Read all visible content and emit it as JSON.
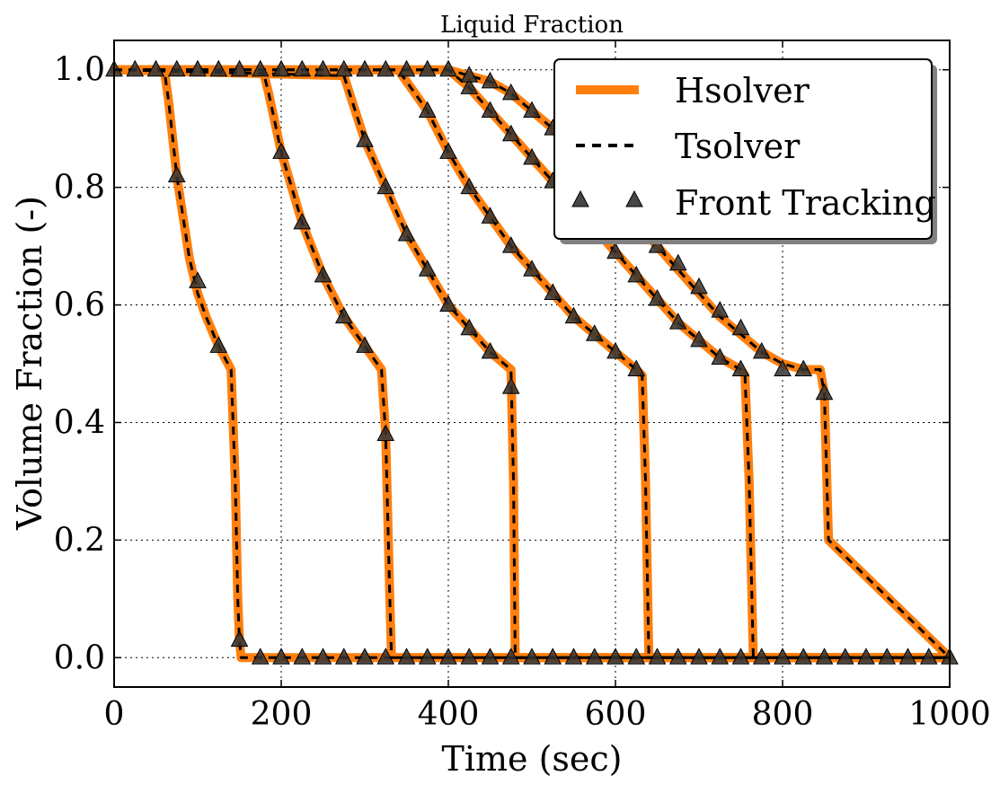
{
  "chart_data": {
    "type": "line",
    "title": "Liquid Fraction",
    "xlabel": "Time (sec)",
    "ylabel": "Volume Fraction (-)",
    "xlim": [
      0,
      1000
    ],
    "ylim": [
      -0.05,
      1.05
    ],
    "xticks": [
      0,
      200,
      400,
      600,
      800,
      1000
    ],
    "yticks": [
      0.0,
      0.2,
      0.4,
      0.6,
      0.8,
      1.0
    ],
    "xtick_labels": [
      "0",
      "200",
      "400",
      "600",
      "800",
      "1000"
    ],
    "ytick_labels": [
      "0.0",
      "0.2",
      "0.4",
      "0.6",
      "0.8",
      "1.0"
    ],
    "grid": true,
    "legend_position": "top-right",
    "colors": {
      "hsolver": "#ff7f0e",
      "tsolver": "#000000",
      "front_tracking": "#333333"
    },
    "legend": [
      {
        "label": "Hsolver",
        "style": "solid-orange-line"
      },
      {
        "label": "Tsolver",
        "style": "dashed-black-line"
      },
      {
        "label": "Front Tracking",
        "style": "triangle-markers"
      }
    ],
    "series": [
      {
        "curve": 1,
        "x": [
          0,
          60,
          65,
          75,
          90,
          100,
          110,
          125,
          140,
          145,
          148,
          150,
          152,
          1000
        ],
        "y": [
          1.0,
          1.0,
          0.95,
          0.82,
          0.68,
          0.62,
          0.58,
          0.53,
          0.49,
          0.3,
          0.1,
          0.03,
          0.0,
          0.0
        ]
      },
      {
        "curve": 2,
        "x": [
          0,
          178,
          185,
          200,
          225,
          250,
          275,
          300,
          320,
          325,
          330,
          332,
          1000
        ],
        "y": [
          1.0,
          1.0,
          0.96,
          0.86,
          0.74,
          0.65,
          0.58,
          0.53,
          0.49,
          0.38,
          0.1,
          0.0,
          0.0
        ]
      },
      {
        "curve": 3,
        "x": [
          0,
          275,
          300,
          325,
          350,
          375,
          400,
          425,
          450,
          475,
          478,
          480,
          1000
        ],
        "y": [
          1.0,
          0.99,
          0.88,
          0.8,
          0.72,
          0.66,
          0.6,
          0.56,
          0.52,
          0.49,
          0.3,
          0.0,
          0.0
        ]
      },
      {
        "curve": 4,
        "x": [
          0,
          340,
          350,
          375,
          400,
          425,
          450,
          475,
          500,
          525,
          550,
          575,
          600,
          625,
          632,
          636,
          640,
          1000
        ],
        "y": [
          1.0,
          1.0,
          0.98,
          0.93,
          0.86,
          0.8,
          0.75,
          0.7,
          0.66,
          0.62,
          0.58,
          0.55,
          0.52,
          0.49,
          0.48,
          0.3,
          0.0,
          0.0
        ]
      },
      {
        "curve": 5,
        "x": [
          0,
          400,
          425,
          450,
          475,
          500,
          525,
          550,
          575,
          600,
          625,
          650,
          675,
          700,
          725,
          750,
          755,
          760,
          765,
          1000
        ],
        "y": [
          1.0,
          1.0,
          0.97,
          0.93,
          0.89,
          0.85,
          0.81,
          0.77,
          0.73,
          0.69,
          0.65,
          0.61,
          0.57,
          0.54,
          0.51,
          0.49,
          0.48,
          0.3,
          0.0,
          0.0
        ]
      },
      {
        "curve": 6,
        "x": [
          0,
          400,
          425,
          450,
          475,
          500,
          525,
          550,
          575,
          600,
          625,
          650,
          675,
          700,
          725,
          750,
          775,
          800,
          825,
          845,
          850,
          855,
          1000
        ],
        "y": [
          1.0,
          1.0,
          0.99,
          0.98,
          0.96,
          0.93,
          0.9,
          0.86,
          0.82,
          0.78,
          0.74,
          0.7,
          0.66,
          0.62,
          0.58,
          0.55,
          0.52,
          0.5,
          0.49,
          0.49,
          0.45,
          0.2,
          0.0
        ]
      }
    ],
    "front_tracking_markers": [
      [
        0,
        1.0
      ],
      [
        25,
        1.0
      ],
      [
        50,
        1.0
      ],
      [
        75,
        1.0
      ],
      [
        100,
        1.0
      ],
      [
        125,
        1.0
      ],
      [
        150,
        1.0
      ],
      [
        175,
        1.0
      ],
      [
        200,
        1.0
      ],
      [
        225,
        1.0
      ],
      [
        250,
        1.0
      ],
      [
        275,
        1.0
      ],
      [
        300,
        1.0
      ],
      [
        325,
        1.0
      ],
      [
        350,
        1.0
      ],
      [
        375,
        1.0
      ],
      [
        400,
        1.0
      ],
      [
        75,
        0.82
      ],
      [
        100,
        0.64
      ],
      [
        125,
        0.53
      ],
      [
        150,
        0.03
      ],
      [
        200,
        0.86
      ],
      [
        225,
        0.74
      ],
      [
        250,
        0.65
      ],
      [
        275,
        0.58
      ],
      [
        300,
        0.53
      ],
      [
        325,
        0.38
      ],
      [
        300,
        0.88
      ],
      [
        325,
        0.8
      ],
      [
        350,
        0.72
      ],
      [
        375,
        0.66
      ],
      [
        400,
        0.6
      ],
      [
        425,
        0.56
      ],
      [
        450,
        0.52
      ],
      [
        475,
        0.46
      ],
      [
        375,
        0.93
      ],
      [
        400,
        0.86
      ],
      [
        425,
        0.8
      ],
      [
        450,
        0.75
      ],
      [
        475,
        0.7
      ],
      [
        500,
        0.66
      ],
      [
        525,
        0.62
      ],
      [
        550,
        0.58
      ],
      [
        575,
        0.55
      ],
      [
        600,
        0.52
      ],
      [
        625,
        0.49
      ],
      [
        425,
        0.97
      ],
      [
        450,
        0.93
      ],
      [
        475,
        0.89
      ],
      [
        500,
        0.85
      ],
      [
        525,
        0.81
      ],
      [
        550,
        0.77
      ],
      [
        575,
        0.73
      ],
      [
        600,
        0.69
      ],
      [
        625,
        0.65
      ],
      [
        650,
        0.61
      ],
      [
        675,
        0.57
      ],
      [
        700,
        0.54
      ],
      [
        725,
        0.51
      ],
      [
        750,
        0.49
      ],
      [
        425,
        0.99
      ],
      [
        450,
        0.98
      ],
      [
        475,
        0.96
      ],
      [
        500,
        0.93
      ],
      [
        525,
        0.9
      ],
      [
        550,
        0.86
      ],
      [
        575,
        0.82
      ],
      [
        600,
        0.78
      ],
      [
        625,
        0.74
      ],
      [
        650,
        0.7
      ],
      [
        675,
        0.67
      ],
      [
        700,
        0.63
      ],
      [
        725,
        0.59
      ],
      [
        750,
        0.56
      ],
      [
        775,
        0.52
      ],
      [
        800,
        0.49
      ],
      [
        825,
        0.49
      ],
      [
        850,
        0.45
      ],
      [
        175,
        0.0
      ],
      [
        200,
        0.0
      ],
      [
        225,
        0.0
      ],
      [
        250,
        0.0
      ],
      [
        275,
        0.0
      ],
      [
        300,
        0.0
      ],
      [
        325,
        0.0
      ],
      [
        350,
        0.0
      ],
      [
        375,
        0.0
      ],
      [
        400,
        0.0
      ],
      [
        425,
        0.0
      ],
      [
        450,
        0.0
      ],
      [
        475,
        0.0
      ],
      [
        500,
        0.0
      ],
      [
        525,
        0.0
      ],
      [
        550,
        0.0
      ],
      [
        575,
        0.0
      ],
      [
        600,
        0.0
      ],
      [
        625,
        0.0
      ],
      [
        650,
        0.0
      ],
      [
        675,
        0.0
      ],
      [
        700,
        0.0
      ],
      [
        725,
        0.0
      ],
      [
        750,
        0.0
      ],
      [
        775,
        0.0
      ],
      [
        800,
        0.0
      ],
      [
        825,
        0.0
      ],
      [
        850,
        0.0
      ],
      [
        875,
        0.0
      ],
      [
        900,
        0.0
      ],
      [
        925,
        0.0
      ],
      [
        950,
        0.0
      ],
      [
        975,
        0.0
      ],
      [
        1000,
        0.0
      ]
    ]
  }
}
